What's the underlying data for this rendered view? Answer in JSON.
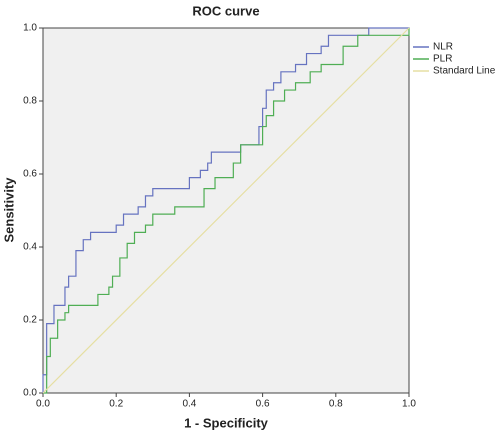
{
  "chart_data": {
    "type": "line",
    "title": "ROC curve",
    "x_label": "1 - Specificity",
    "y_label": "Sensitivity",
    "xlim": [
      0,
      1
    ],
    "ylim": [
      0,
      1
    ],
    "xticks": [
      {
        "value": 0,
        "label": "0.0"
      },
      0.2,
      0.4,
      0.6,
      0.8,
      {
        "value": 1,
        "label": "1.0"
      }
    ],
    "yticks": [
      {
        "value": 0,
        "label": "0.0"
      },
      0.2,
      0.4,
      0.6,
      0.8,
      {
        "value": 1,
        "label": "1.0"
      }
    ],
    "grid": false,
    "legend": "right",
    "series": [
      {
        "name": "NLR",
        "color": "#6673c0",
        "x": [
          0,
          0,
          0.01,
          0.01,
          0.03,
          0.03,
          0.06,
          0.06,
          0.07,
          0.07,
          0.09,
          0.09,
          0.11,
          0.11,
          0.13,
          0.13,
          0.2,
          0.2,
          0.22,
          0.22,
          0.26,
          0.26,
          0.28,
          0.28,
          0.3,
          0.3,
          0.4,
          0.4,
          0.43,
          0.43,
          0.45,
          0.45,
          0.46,
          0.46,
          0.54,
          0.54,
          0.59,
          0.59,
          0.6,
          0.6,
          0.61,
          0.61,
          0.63,
          0.63,
          0.65,
          0.65,
          0.69,
          0.69,
          0.72,
          0.72,
          0.76,
          0.76,
          0.78,
          0.78,
          0.89,
          0.89,
          1
        ],
        "values": [
          0,
          0.05,
          0.05,
          0.19,
          0.19,
          0.24,
          0.24,
          0.29,
          0.29,
          0.32,
          0.32,
          0.39,
          0.39,
          0.42,
          0.42,
          0.44,
          0.44,
          0.46,
          0.46,
          0.49,
          0.49,
          0.51,
          0.51,
          0.54,
          0.54,
          0.56,
          0.56,
          0.59,
          0.59,
          0.61,
          0.61,
          0.63,
          0.63,
          0.66,
          0.66,
          0.68,
          0.68,
          0.73,
          0.73,
          0.78,
          0.78,
          0.83,
          0.83,
          0.85,
          0.85,
          0.88,
          0.88,
          0.9,
          0.9,
          0.93,
          0.93,
          0.95,
          0.95,
          0.98,
          0.98,
          1,
          1
        ]
      },
      {
        "name": "PLR",
        "color": "#4fae54",
        "x": [
          0,
          0.01,
          0.01,
          0.02,
          0.02,
          0.04,
          0.04,
          0.06,
          0.06,
          0.07,
          0.07,
          0.15,
          0.15,
          0.18,
          0.18,
          0.19,
          0.19,
          0.21,
          0.21,
          0.23,
          0.23,
          0.25,
          0.25,
          0.28,
          0.28,
          0.3,
          0.3,
          0.36,
          0.36,
          0.44,
          0.44,
          0.47,
          0.47,
          0.52,
          0.52,
          0.54,
          0.54,
          0.6,
          0.6,
          0.61,
          0.61,
          0.63,
          0.63,
          0.66,
          0.66,
          0.69,
          0.69,
          0.73,
          0.73,
          0.76,
          0.76,
          0.82,
          0.82,
          0.86,
          0.86,
          1,
          1
        ],
        "values": [
          0,
          0,
          0.1,
          0.1,
          0.15,
          0.15,
          0.2,
          0.2,
          0.22,
          0.22,
          0.24,
          0.24,
          0.27,
          0.27,
          0.29,
          0.29,
          0.32,
          0.32,
          0.37,
          0.37,
          0.41,
          0.41,
          0.44,
          0.44,
          0.46,
          0.46,
          0.49,
          0.49,
          0.51,
          0.51,
          0.56,
          0.56,
          0.59,
          0.59,
          0.63,
          0.63,
          0.68,
          0.68,
          0.73,
          0.73,
          0.76,
          0.76,
          0.8,
          0.8,
          0.83,
          0.83,
          0.85,
          0.85,
          0.88,
          0.88,
          0.9,
          0.9,
          0.95,
          0.95,
          0.98,
          0.98,
          1
        ]
      },
      {
        "name": "Standard Line",
        "color": "#e6dfa2",
        "x": [
          0,
          1
        ],
        "values": [
          0,
          1
        ]
      }
    ]
  }
}
